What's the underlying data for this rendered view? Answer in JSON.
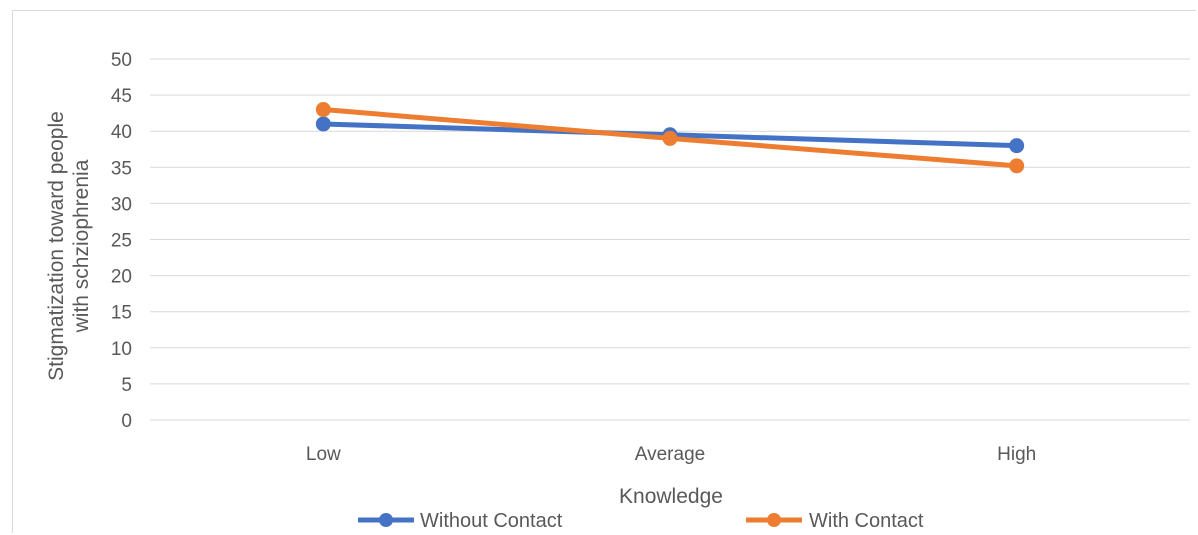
{
  "chart_data": {
    "type": "line",
    "categories": [
      "Low",
      "Average",
      "High"
    ],
    "series": [
      {
        "name": "Without Contact",
        "values": [
          41,
          39.5,
          38
        ],
        "color": "#4472C4"
      },
      {
        "name": "With Contact",
        "values": [
          43,
          39,
          35.2
        ],
        "color": "#ED7D31"
      }
    ],
    "title": "",
    "xlabel": "Knowledge",
    "ylabel": [
      "Stigmatization toward people",
      "with schziophrenia"
    ],
    "ylim": [
      0,
      50
    ],
    "yticks": [
      "0",
      "5",
      "10",
      "15",
      "20",
      "25",
      "30",
      "35",
      "40",
      "45",
      "50"
    ],
    "grid": true,
    "legend_position": "bottom"
  }
}
